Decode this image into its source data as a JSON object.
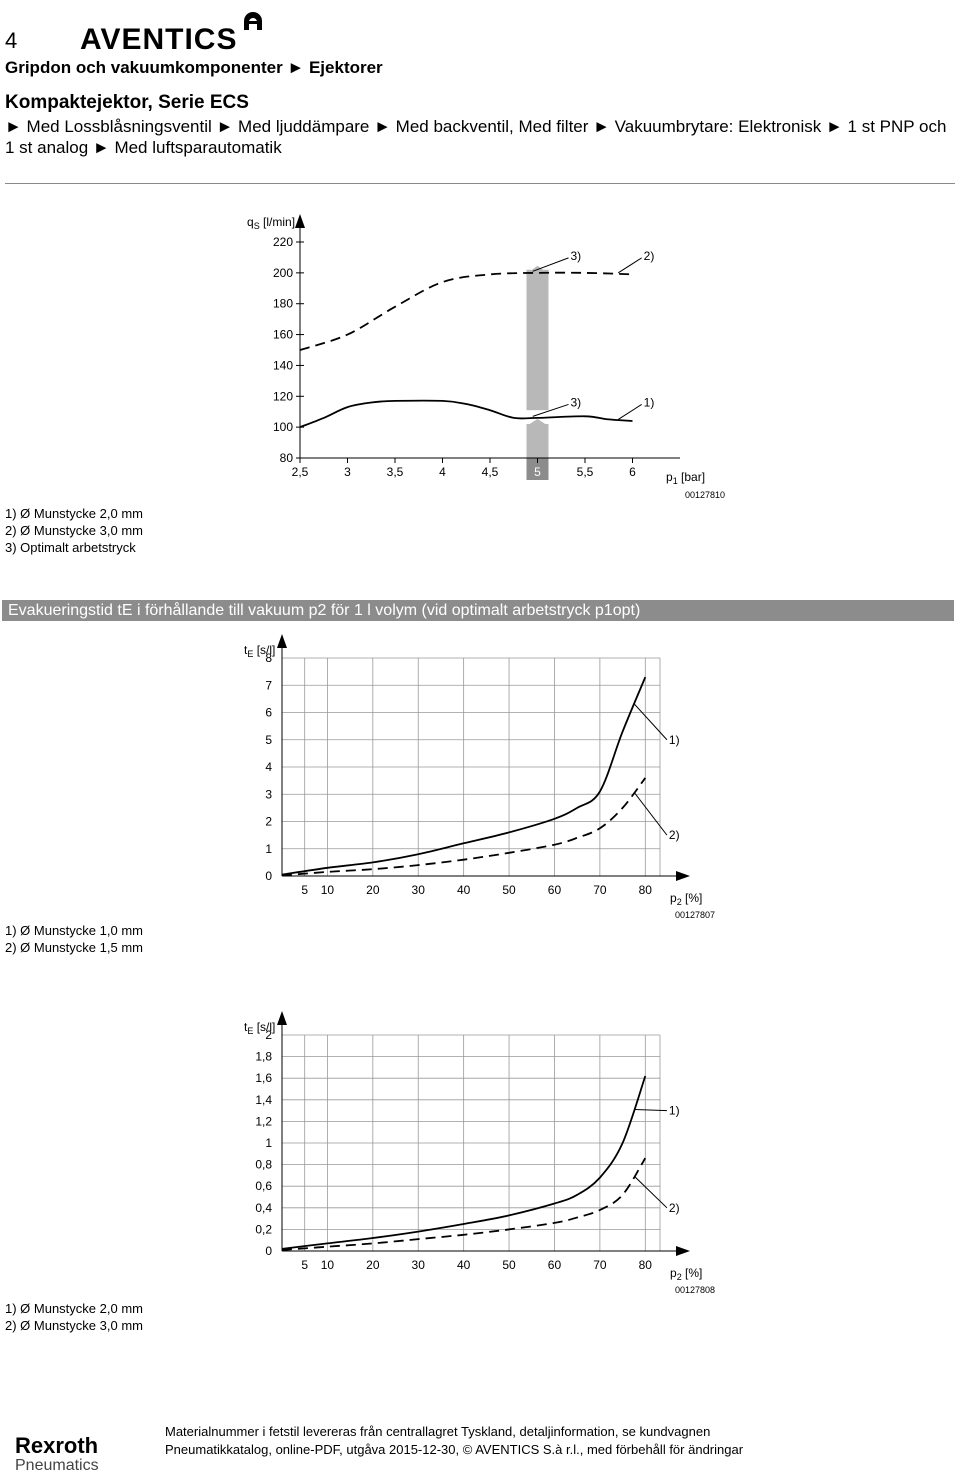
{
  "header": {
    "page_number": "4",
    "brand": "AVENTICS",
    "breadcrumb": "Gripdon och vakuumkomponenter ► Ejektorer",
    "title": "Kompaktejektor, Serie ECS",
    "variant": "► Med Lossblåsningsventil ► Med ljuddämpare ► Med backventil, Med filter ► Vakuumbrytare: Elektronisk ► 1 st PNP och 1 st analog ► Med luftsparautomatik"
  },
  "section_title": "Evakueringstid tE i förhållande till vakuum p2 för 1 l volym (vid optimalt arbetstryck p1opt)",
  "chart_data": [
    {
      "type": "line",
      "ylabel_main": "q",
      "ylabel_sub": "S",
      "ylabel_unit": " [l/min]",
      "xlabel_main": "p",
      "xlabel_sub": "1",
      "xlabel_unit": " [bar]",
      "x_ticks": [
        "2,5",
        "3",
        "3,5",
        "4",
        "4,5",
        "5",
        "5,5",
        "6"
      ],
      "y_ticks": [
        "80",
        "100",
        "120",
        "140",
        "160",
        "180",
        "200",
        "220"
      ],
      "xlim": [
        2.5,
        6.5
      ],
      "ylim": [
        80,
        220
      ],
      "highlight_x": 5,
      "series": [
        {
          "name": "1)",
          "style": "solid",
          "x": [
            2.5,
            2.75,
            3,
            3.25,
            3.5,
            4,
            4.25,
            4.5,
            4.75,
            5,
            5.5,
            5.75,
            6
          ],
          "y": [
            100,
            106,
            113,
            116,
            117,
            117,
            115,
            111,
            106,
            106,
            107,
            105,
            104
          ]
        },
        {
          "name": "2)",
          "style": "dashed",
          "x": [
            2.5,
            3,
            3.5,
            4,
            4.5,
            5,
            5.5,
            6
          ],
          "y": [
            150,
            160,
            178,
            194,
            199,
            200,
            200,
            199
          ]
        }
      ],
      "annotations": [
        {
          "text": "3)",
          "x": 5.2,
          "y": 211
        },
        {
          "text": "2)",
          "x": 5.97,
          "y": 211
        },
        {
          "text": "3)",
          "x": 5.2,
          "y": 116
        },
        {
          "text": "1)",
          "x": 5.97,
          "y": 116
        }
      ],
      "image_id": "00127810",
      "notes": [
        "1) Ø Munstycke 2,0 mm",
        "2) Ø Munstycke 3,0 mm",
        "3) Optimalt arbetstryck"
      ]
    },
    {
      "type": "line",
      "ylabel_main": "t",
      "ylabel_sub": "E",
      "ylabel_unit": " [s/l]",
      "xlabel_main": "p",
      "xlabel_sub": "2",
      "xlabel_unit": " [%]",
      "x_ticks": [
        "5",
        "10",
        "20",
        "30",
        "40",
        "50",
        "60",
        "70",
        "80"
      ],
      "x_tick_values": [
        5,
        10,
        20,
        30,
        40,
        50,
        60,
        70,
        80
      ],
      "y_ticks": [
        "0",
        "1",
        "2",
        "3",
        "4",
        "5",
        "6",
        "7",
        "8"
      ],
      "y_tick_values": [
        0,
        1,
        2,
        3,
        4,
        5,
        6,
        7,
        8
      ],
      "xlim": [
        0,
        85
      ],
      "ylim": [
        0,
        8
      ],
      "series": [
        {
          "name": "1)",
          "style": "solid",
          "x": [
            0,
            10,
            20,
            30,
            40,
            50,
            60,
            65,
            70,
            75,
            80
          ],
          "y": [
            0.05,
            0.3,
            0.5,
            0.8,
            1.2,
            1.6,
            2.1,
            2.5,
            3.1,
            5.3,
            7.3
          ]
        },
        {
          "name": "2)",
          "style": "dashed",
          "x": [
            0,
            10,
            20,
            30,
            40,
            50,
            60,
            65,
            70,
            75,
            80
          ],
          "y": [
            0.02,
            0.15,
            0.25,
            0.4,
            0.6,
            0.85,
            1.15,
            1.4,
            1.75,
            2.5,
            3.6
          ]
        }
      ],
      "annotations": [
        {
          "text": "1)",
          "x": 83,
          "y": 5
        },
        {
          "text": "2)",
          "x": 83,
          "y": 1.5
        }
      ],
      "image_id": "00127807",
      "notes": [
        "1) Ø Munstycke 1,0 mm",
        "2) Ø Munstycke 1,5 mm"
      ]
    },
    {
      "type": "line",
      "ylabel_main": "t",
      "ylabel_sub": "E",
      "ylabel_unit": " [s/l]",
      "xlabel_main": "p",
      "xlabel_sub": "2",
      "xlabel_unit": " [%]",
      "x_ticks": [
        "5",
        "10",
        "20",
        "30",
        "40",
        "50",
        "60",
        "70",
        "80"
      ],
      "x_tick_values": [
        5,
        10,
        20,
        30,
        40,
        50,
        60,
        70,
        80
      ],
      "y_ticks": [
        "0",
        "0,2",
        "0,4",
        "0,6",
        "0,8",
        "1",
        "1,2",
        "1,4",
        "1,6",
        "1,8",
        "2"
      ],
      "y_tick_values": [
        0,
        0.2,
        0.4,
        0.6,
        0.8,
        1,
        1.2,
        1.4,
        1.6,
        1.8,
        2
      ],
      "xlim": [
        0,
        85
      ],
      "ylim": [
        0,
        2
      ],
      "series": [
        {
          "name": "1)",
          "style": "solid",
          "x": [
            0,
            10,
            20,
            30,
            40,
            50,
            60,
            65,
            70,
            75,
            80
          ],
          "y": [
            0.02,
            0.07,
            0.12,
            0.18,
            0.25,
            0.33,
            0.44,
            0.52,
            0.68,
            1.0,
            1.62
          ]
        },
        {
          "name": "2)",
          "style": "dashed",
          "x": [
            0,
            10,
            20,
            30,
            40,
            50,
            60,
            65,
            70,
            75,
            80
          ],
          "y": [
            0.01,
            0.04,
            0.07,
            0.11,
            0.15,
            0.2,
            0.26,
            0.31,
            0.38,
            0.52,
            0.86
          ]
        }
      ],
      "annotations": [
        {
          "text": "1)",
          "x": 83,
          "y": 1.3
        },
        {
          "text": "2)",
          "x": 83,
          "y": 0.4
        }
      ],
      "image_id": "00127808",
      "notes": [
        "1) Ø Munstycke 2,0 mm",
        "2) Ø Munstycke 3,0 mm"
      ]
    }
  ],
  "footer": {
    "brand": "Rexroth",
    "brand_sub": "Pneumatics",
    "line1": "Materialnummer i fetstil levereras från centrallagret Tyskland, detaljinformation, se kundvagnen",
    "line2": "Pneumatikkatalog, online-PDF, utgåva 2015-12-30, © AVENTICS S.à r.l., med förbehåll för ändringar"
  },
  "colors": {
    "section_bar": "#8c8c8c",
    "highlight_band": "#b8b8b8",
    "highlight_tick": "#8c8c8c",
    "grid": "#999999"
  }
}
